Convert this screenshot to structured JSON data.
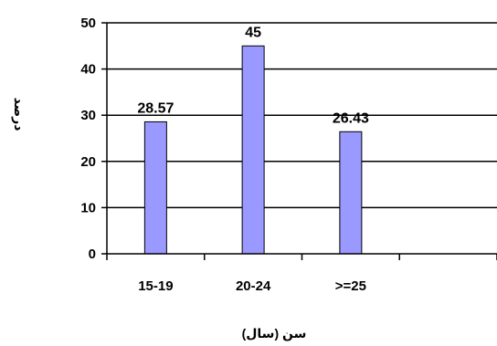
{
  "chart_data": {
    "type": "bar",
    "title": "",
    "xlabel": "سن (سال)",
    "ylabel": "درصد",
    "categories": [
      "15-19",
      "20-24",
      ">=25",
      ""
    ],
    "values": [
      28.57,
      45,
      26.43,
      null
    ],
    "data_labels": [
      "28.57",
      "45",
      "26.43",
      ""
    ],
    "ylim": [
      0,
      50
    ],
    "yticks": [
      0,
      10,
      20,
      30,
      40,
      50
    ],
    "grid": true,
    "legend": "none",
    "bar_color": "#9999ff",
    "bar_stroke": "#000000"
  }
}
